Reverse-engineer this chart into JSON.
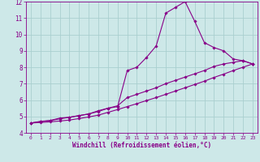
{
  "xlabel": "Windchill (Refroidissement éolien,°C)",
  "xlim": [
    -0.5,
    23.5
  ],
  "ylim": [
    4,
    12
  ],
  "xticks": [
    0,
    1,
    2,
    3,
    4,
    5,
    6,
    7,
    8,
    9,
    10,
    11,
    12,
    13,
    14,
    15,
    16,
    17,
    18,
    19,
    20,
    21,
    22,
    23
  ],
  "yticks": [
    4,
    5,
    6,
    7,
    8,
    9,
    10,
    11,
    12
  ],
  "bg_color": "#cde8e8",
  "grid_color": "#aacfcf",
  "line_color": "#880088",
  "line1_x": [
    0,
    1,
    2,
    3,
    4,
    5,
    6,
    7,
    8,
    9,
    10,
    11,
    12,
    13,
    14,
    15,
    16,
    17,
    18,
    19,
    20,
    21,
    22,
    23
  ],
  "line1_y": [
    4.6,
    4.7,
    4.75,
    4.9,
    4.95,
    5.05,
    5.15,
    5.35,
    5.5,
    5.6,
    7.8,
    8.0,
    8.6,
    9.3,
    11.3,
    11.65,
    12.0,
    10.8,
    9.5,
    9.2,
    9.0,
    8.5,
    8.4,
    8.2
  ],
  "line2_x": [
    0,
    1,
    2,
    3,
    4,
    5,
    6,
    7,
    8,
    9,
    10,
    11,
    12,
    13,
    14,
    15,
    16,
    17,
    18,
    19,
    20,
    21,
    22,
    23
  ],
  "line2_y": [
    4.6,
    4.68,
    4.75,
    4.85,
    4.95,
    5.05,
    5.15,
    5.3,
    5.5,
    5.65,
    6.15,
    6.35,
    6.55,
    6.75,
    7.0,
    7.2,
    7.4,
    7.6,
    7.8,
    8.05,
    8.2,
    8.3,
    8.4,
    8.2
  ],
  "line3_x": [
    0,
    1,
    2,
    3,
    4,
    5,
    6,
    7,
    8,
    9,
    10,
    11,
    12,
    13,
    14,
    15,
    16,
    17,
    18,
    19,
    20,
    21,
    22,
    23
  ],
  "line3_y": [
    4.6,
    4.63,
    4.67,
    4.72,
    4.78,
    4.87,
    4.97,
    5.08,
    5.25,
    5.42,
    5.6,
    5.78,
    5.97,
    6.15,
    6.35,
    6.55,
    6.75,
    6.95,
    7.15,
    7.38,
    7.58,
    7.8,
    8.0,
    8.2
  ]
}
